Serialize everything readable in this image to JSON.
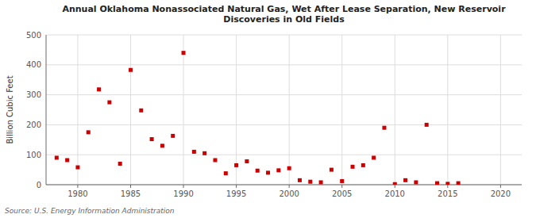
{
  "chart_data": {
    "type": "scatter",
    "title": "Annual Oklahoma Nonassociated Natural Gas, Wet After Lease Separation, New Reservoir\nDiscoveries in Old Fields",
    "ylabel": "Billion Cubic Feet",
    "source": "Source: U.S. Energy Information Administration",
    "color": "#cc0000",
    "marker": "square",
    "grid": true,
    "xlim": [
      1977,
      2022
    ],
    "ylim": [
      0,
      500
    ],
    "xticks": [
      1980,
      1985,
      1990,
      1995,
      2000,
      2005,
      2010,
      2015,
      2020
    ],
    "yticks": [
      0,
      100,
      200,
      300,
      400,
      500
    ],
    "x": [
      1978,
      1979,
      1980,
      1981,
      1982,
      1983,
      1984,
      1985,
      1986,
      1987,
      1988,
      1989,
      1990,
      1991,
      1992,
      1993,
      1994,
      1995,
      1996,
      1997,
      1998,
      1999,
      2000,
      2001,
      2002,
      2003,
      2004,
      2005,
      2006,
      2007,
      2008,
      2009,
      2010,
      2011,
      2012,
      2013,
      2014,
      2015,
      2016
    ],
    "values": [
      90,
      82,
      58,
      175,
      318,
      275,
      70,
      383,
      248,
      152,
      130,
      163,
      440,
      110,
      105,
      82,
      38,
      65,
      78,
      47,
      40,
      48,
      55,
      15,
      10,
      8,
      50,
      12,
      60,
      65,
      90,
      190,
      2,
      15,
      8,
      200,
      5,
      3,
      5
    ]
  }
}
